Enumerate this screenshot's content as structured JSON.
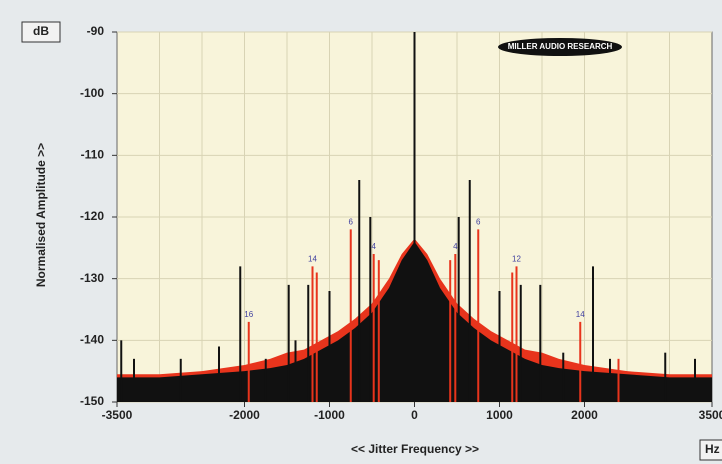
{
  "chart_data": {
    "type": "spectrum",
    "y_unit_label": "dB",
    "ylabel": "Normalised Amplitude >>",
    "xlabel": "<< Jitter Frequency >>",
    "x_unit_label": "Hz",
    "logo": "MILLER AUDIO RESEARCH",
    "xlim": [
      -3500,
      3500
    ],
    "ylim": [
      -150,
      -90
    ],
    "xticks": [
      -3500,
      -2000,
      -1000,
      0,
      1000,
      2000,
      3500
    ],
    "xgrid": [
      -3000,
      -2500,
      -2000,
      -1500,
      -1000,
      -500,
      0,
      500,
      1000,
      1500,
      2000,
      2500,
      3000
    ],
    "yticks": [
      -90,
      -100,
      -110,
      -120,
      -130,
      -140,
      -150
    ],
    "grid": true,
    "series": [
      {
        "style": "area",
        "color": "#e8341c",
        "x": [
          -3500,
          -3000,
          -2500,
          -2000,
          -1700,
          -1500,
          -1300,
          -1100,
          -900,
          -700,
          -500,
          -300,
          -150,
          0,
          150,
          300,
          500,
          700,
          900,
          1100,
          1300,
          1500,
          1700,
          2000,
          2500,
          3000,
          3500
        ],
        "values": [
          -145.5,
          -145.5,
          -145,
          -144,
          -143,
          -142,
          -141.5,
          -140,
          -138.5,
          -136.5,
          -134,
          -130,
          -126,
          -123.5,
          -126,
          -130,
          -134,
          -136.5,
          -138.5,
          -140,
          -141.5,
          -142,
          -143,
          -144,
          -145,
          -145.5,
          -145.5
        ]
      },
      {
        "style": "area",
        "color": "#111111",
        "x": [
          -3500,
          -3000,
          -2500,
          -2000,
          -1700,
          -1500,
          -1300,
          -1100,
          -900,
          -700,
          -500,
          -300,
          -150,
          0,
          150,
          300,
          500,
          700,
          900,
          1100,
          1300,
          1500,
          1700,
          2000,
          2500,
          3000,
          3500
        ],
        "values": [
          -146,
          -146,
          -145.5,
          -145,
          -144.5,
          -144,
          -143,
          -141.5,
          -140,
          -138,
          -135.5,
          -131.5,
          -127,
          -124,
          -127,
          -131.5,
          -135.5,
          -138,
          -140,
          -141.5,
          -143,
          -144,
          -144.5,
          -145,
          -145.5,
          -146,
          -146
        ]
      },
      {
        "style": "spikes",
        "color": "#e8341c",
        "x": [
          -1950,
          -1200,
          -1150,
          -750,
          -480,
          -420,
          420,
          480,
          750,
          1150,
          1200,
          1950,
          2400
        ],
        "values": [
          -137,
          -128,
          -129,
          -122,
          -126,
          -127,
          -127,
          -126,
          -122,
          -129,
          -128,
          -137,
          -143
        ],
        "annotations": [
          "16",
          "14",
          null,
          "6",
          "4",
          null,
          null,
          "4",
          "6",
          null,
          "12",
          "14",
          null
        ]
      },
      {
        "style": "spikes",
        "color": "#111111",
        "x": [
          -3450,
          -3300,
          -2750,
          -2300,
          -2050,
          -1750,
          -1480,
          -1400,
          -1250,
          -1000,
          -650,
          -520,
          0,
          520,
          650,
          1000,
          1250,
          1480,
          1750,
          2100,
          2300,
          2950,
          3300
        ],
        "values": [
          -140,
          -143,
          -143,
          -141,
          -128,
          -143,
          -131,
          -140,
          -131,
          -132,
          -114,
          -120,
          -90,
          -120,
          -114,
          -132,
          -131,
          -131,
          -142,
          -128,
          -143,
          -142,
          -143
        ]
      }
    ]
  }
}
